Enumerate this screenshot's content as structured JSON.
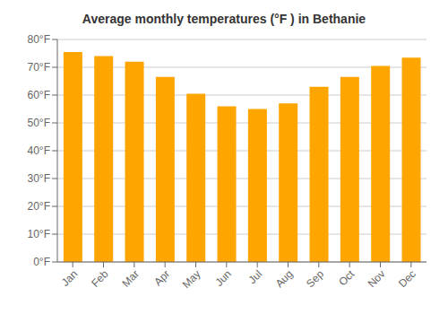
{
  "chart_data": {
    "type": "bar",
    "title": "Average monthly temperatures (°F ) in Bethanie",
    "categories": [
      "Jan",
      "Feb",
      "Mar",
      "Apr",
      "May",
      "Jun",
      "Jul",
      "Aug",
      "Sep",
      "Oct",
      "Nov",
      "Dec"
    ],
    "values": [
      75.5,
      74.0,
      72.0,
      66.5,
      60.5,
      56.0,
      55.0,
      57.0,
      63.0,
      66.5,
      70.5,
      73.5
    ],
    "color": "#FFA500",
    "ylim": [
      0,
      80
    ],
    "yticks": [
      {
        "value": 0,
        "label": "0°F"
      },
      {
        "value": 10,
        "label": "10°F"
      },
      {
        "value": 20,
        "label": "20°F"
      },
      {
        "value": 30,
        "label": "30°F"
      },
      {
        "value": 40,
        "label": "40°F"
      },
      {
        "value": 50,
        "label": "50°F"
      },
      {
        "value": 60,
        "label": "60°F"
      },
      {
        "value": 70,
        "label": "70°F"
      },
      {
        "value": 80,
        "label": "80°F"
      }
    ],
    "grid": true
  }
}
